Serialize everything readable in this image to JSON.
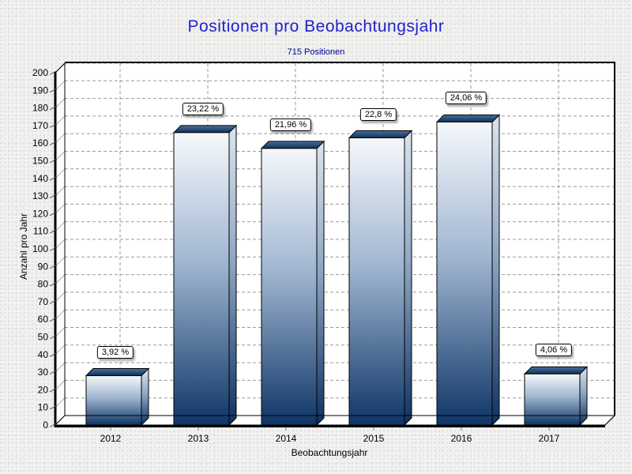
{
  "header": {
    "title": "Positionen pro Beobachtungsjahr",
    "subtitle": "715 Positionen",
    "title_color": "#2222cc",
    "subtitle_color": "#000099"
  },
  "chart_data": {
    "type": "bar",
    "style": "3d-column",
    "title": "Positionen pro Beobachtungsjahr",
    "subtitle": "715 Positionen",
    "total_positions": 715,
    "categories": [
      "2012",
      "2013",
      "2014",
      "2015",
      "2016",
      "2017"
    ],
    "series": [
      {
        "name": "Positionen",
        "values": [
          28,
          166,
          157,
          163,
          172,
          29
        ]
      }
    ],
    "bar_percent_labels": [
      "3,92 %",
      "23,22 %",
      "21,96 %",
      "22,8 %",
      "24,06 %",
      "4,06 %"
    ],
    "xlabel": "Beobachtungsjahr",
    "ylabel": "Anzahl pro Jahr",
    "ylim": [
      0,
      200
    ],
    "ytick_step": 10,
    "grid": "dashed",
    "legend": "none",
    "colors": {
      "plot_bg": "#ffffff",
      "grid": "#999999",
      "wall_grid": "#aaaaaa",
      "axis": "#000000",
      "bar_front_light": "#f5f8fb",
      "bar_front_mid": "#9fb5d0",
      "bar_front_dark": "#0e3566",
      "bar_side_light": "#dce4ee",
      "bar_side_mid": "#8fa7c4",
      "bar_side_dark": "#0c3160",
      "bar_top_light": "#4a6f9e",
      "bar_top_dark": "#0d3158"
    }
  }
}
